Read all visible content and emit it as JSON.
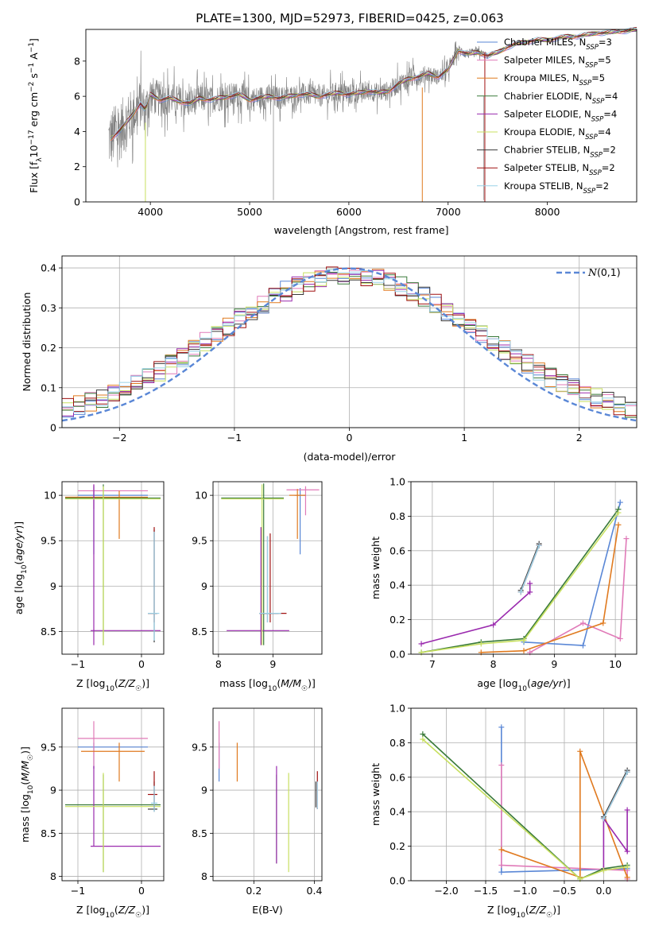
{
  "title": "PLATE=1300, MJD=52973, FIBERID=0425, z=0.063",
  "palette": {
    "chabrier_miles": "#5a87d6",
    "salpeter_miles": "#e07ab8",
    "kroupa_miles": "#e07a1f",
    "chabrier_elodie": "#3a7a3a",
    "salpeter_elodie": "#9a2aae",
    "kroupa_elodie": "#c8e060",
    "chabrier_stelib": "#3a3a3a",
    "salpeter_stelib": "#a01010",
    "kroupa_stelib": "#9ad2e8",
    "data": "#808080"
  },
  "chart_data": [
    {
      "id": "spectrum",
      "type": "line",
      "xlabel": "wavelength [Angstrom, rest frame]",
      "ylabel": "Flux [f_λ10^-17 erg cm^-2 s^-1 A^-1]",
      "xlim": [
        3350,
        8900
      ],
      "ylim": [
        0,
        9.8
      ],
      "xticks": [
        4000,
        5000,
        6000,
        7000,
        8000
      ],
      "yticks": [
        0,
        2,
        4,
        6,
        8
      ],
      "legend": "right",
      "legend_entries": [
        {
          "label": "Chabrier MILES, N",
          "sub": "SSP",
          "suffix": "=3",
          "color_key": "chabrier_miles"
        },
        {
          "label": "Salpeter MILES, N",
          "sub": "SSP",
          "suffix": "=5",
          "color_key": "salpeter_miles"
        },
        {
          "label": "Kroupa MILES, N",
          "sub": "SSP",
          "suffix": "=5",
          "color_key": "kroupa_miles"
        },
        {
          "label": "Chabrier ELODIE, N",
          "sub": "SSP",
          "suffix": "=4",
          "color_key": "chabrier_elodie"
        },
        {
          "label": "Salpeter ELODIE, N",
          "sub": "SSP",
          "suffix": "=4",
          "color_key": "salpeter_elodie"
        },
        {
          "label": "Kroupa ELODIE, N",
          "sub": "SSP",
          "suffix": "=4",
          "color_key": "kroupa_elodie"
        },
        {
          "label": "Chabrier STELIB, N",
          "sub": "SSP",
          "suffix": "=2",
          "color_key": "chabrier_stelib"
        },
        {
          "label": "Salpeter STELIB, N",
          "sub": "SSP",
          "suffix": "=2",
          "color_key": "salpeter_stelib"
        },
        {
          "label": "Kroupa STELIB, N",
          "sub": "SSP",
          "suffix": "=2",
          "color_key": "kroupa_stelib"
        }
      ],
      "model_continuum": {
        "x": [
          3600,
          3700,
          3800,
          3900,
          3950,
          4000,
          4100,
          4200,
          4300,
          4400,
          4500,
          4600,
          4700,
          4800,
          4900,
          5000,
          5100,
          5200,
          5300,
          5400,
          5500,
          5600,
          5700,
          5800,
          5900,
          6000,
          6100,
          6200,
          6300,
          6400,
          6500,
          6600,
          6700,
          6800,
          6900,
          7000,
          7100,
          7200,
          7300,
          7400,
          7500,
          7600,
          7700,
          7800,
          7900,
          8000,
          8100,
          8200,
          8300,
          8400,
          8500,
          8600,
          8700,
          8800,
          8900
        ],
        "y": [
          3.6,
          4.1,
          4.8,
          5.6,
          5.2,
          6.1,
          5.8,
          5.9,
          5.7,
          5.6,
          5.9,
          5.8,
          5.9,
          6.0,
          6.1,
          5.8,
          5.9,
          6.0,
          5.9,
          6.0,
          6.1,
          6.1,
          6.0,
          6.1,
          6.2,
          6.1,
          6.2,
          6.3,
          6.2,
          6.3,
          6.7,
          7.0,
          7.1,
          7.3,
          7.1,
          7.5,
          8.6,
          8.4,
          8.5,
          8.3,
          8.5,
          8.8,
          9.0,
          9.1,
          9.2,
          9.2,
          9.3,
          9.4,
          9.4,
          9.5,
          9.6,
          9.6,
          9.7,
          9.7,
          9.8
        ]
      },
      "data_envelope": {
        "x": [
          3600,
          3700,
          3800,
          3900,
          4000,
          4200,
          4400,
          4600,
          4800,
          5000,
          5200,
          5400,
          5600,
          5800,
          6000,
          6200,
          6400,
          6600,
          6800,
          7000,
          7200,
          7400
        ],
        "amp": [
          2.5,
          2.5,
          2.2,
          2.0,
          1.6,
          1.3,
          1.2,
          1.1,
          1.1,
          1.0,
          1.0,
          0.9,
          0.9,
          0.9,
          0.9,
          0.8,
          0.8,
          0.8,
          0.7,
          0.6,
          0.4,
          0.3
        ]
      }
    },
    {
      "id": "residuals",
      "type": "histogram",
      "xlabel": "(data-model)/error",
      "ylabel": "Normed distribution",
      "xlim": [
        -2.5,
        2.5
      ],
      "ylim": [
        0,
        0.43
      ],
      "xticks": [
        -2,
        -1,
        0,
        1,
        2
      ],
      "yticks": [
        0.0,
        0.1,
        0.2,
        0.3,
        0.4
      ],
      "grid": true,
      "legend": "top-right",
      "gaussian_label": "N(0,1)",
      "bin_width": 0.1
    },
    {
      "id": "age_vs_Z",
      "type": "errorbar",
      "xlabel": "Z [log10(Z/Z☉)]",
      "ylabel": "age [log10(age/yr)]",
      "xlim": [
        -1.25,
        0.35
      ],
      "ylim": [
        8.25,
        10.15
      ],
      "xticks": [
        -1,
        0
      ],
      "yticks": [
        8.5,
        9.0,
        9.5,
        10.0
      ],
      "grid": true
    },
    {
      "id": "age_vs_mass",
      "type": "errorbar",
      "xlabel": "mass [log10(M/M☉)]",
      "ylabel": "",
      "xlim": [
        7.9,
        9.9
      ],
      "ylim": [
        8.25,
        10.15
      ],
      "xticks": [
        8,
        9
      ],
      "yticks": [
        8.5,
        9.0,
        9.5,
        10.0
      ],
      "grid": true
    },
    {
      "id": "weight_vs_age",
      "type": "line",
      "xlabel": "age [log10(age/yr)]",
      "ylabel": "mass weight",
      "xlim": [
        6.65,
        10.35
      ],
      "ylim": [
        0,
        1.0
      ],
      "xticks": [
        7,
        8,
        9,
        10
      ],
      "yticks": [
        0.0,
        0.2,
        0.4,
        0.6,
        0.8,
        1.0
      ],
      "grid": true,
      "series": [
        {
          "color_key": "chabrier_miles",
          "x": [
            8.5,
            9.47,
            10.08
          ],
          "y": [
            0.07,
            0.05,
            0.88
          ]
        },
        {
          "color_key": "salpeter_miles",
          "x": [
            8.6,
            9.47,
            10.08,
            10.18
          ],
          "y": [
            0.01,
            0.18,
            0.09,
            0.67
          ]
        },
        {
          "color_key": "kroupa_miles",
          "x": [
            7.8,
            8.5,
            9.8,
            10.05
          ],
          "y": [
            0.01,
            0.02,
            0.18,
            0.75
          ]
        },
        {
          "color_key": "chabrier_elodie",
          "x": [
            6.82,
            7.8,
            8.5,
            10.05
          ],
          "y": [
            0.01,
            0.07,
            0.09,
            0.84
          ]
        },
        {
          "color_key": "salpeter_elodie",
          "x": [
            6.82,
            8.0,
            8.6,
            8.6
          ],
          "y": [
            0.06,
            0.17,
            0.36,
            0.41
          ]
        },
        {
          "color_key": "kroupa_elodie",
          "x": [
            6.82,
            7.8,
            8.5,
            10.05
          ],
          "y": [
            0.01,
            0.06,
            0.08,
            0.82
          ]
        },
        {
          "color_key": "chabrier_stelib",
          "x": [
            8.45,
            8.75
          ],
          "y": [
            0.37,
            0.64
          ]
        },
        {
          "color_key": "salpeter_stelib",
          "x": [
            8.45,
            8.75
          ],
          "y": [
            0.36,
            0.63
          ]
        },
        {
          "color_key": "kroupa_stelib",
          "x": [
            8.45,
            8.75
          ],
          "y": [
            0.36,
            0.63
          ]
        }
      ]
    },
    {
      "id": "mass_vs_Z",
      "type": "errorbar",
      "xlabel": "Z [log10(Z/Z☉)]",
      "ylabel": "mass [log10(M/M☉)]",
      "xlim": [
        -1.25,
        0.35
      ],
      "ylim": [
        7.95,
        9.95
      ],
      "xticks": [
        -1,
        0
      ],
      "yticks": [
        8.0,
        8.5,
        9.0,
        9.5
      ],
      "grid": true
    },
    {
      "id": "mass_vs_EBV",
      "type": "errorbar",
      "xlabel": "E(B-V)",
      "ylabel": "",
      "xlim": [
        0.065,
        0.425
      ],
      "ylim": [
        7.95,
        9.95
      ],
      "xticks": [
        0.2,
        0.4
      ],
      "yticks": [
        8.0,
        8.5,
        9.0,
        9.5
      ],
      "grid": true
    },
    {
      "id": "weight_vs_Z",
      "type": "line",
      "xlabel": "Z [log10(Z/Z☉)]",
      "ylabel": "mass weight",
      "xlim": [
        -2.45,
        0.42
      ],
      "ylim": [
        0,
        1.0
      ],
      "xticks": [
        -2.0,
        -1.5,
        -1.0,
        -0.5,
        0.0
      ],
      "yticks": [
        0.0,
        0.2,
        0.4,
        0.6,
        0.8,
        1.0
      ],
      "grid": true,
      "series": [
        {
          "color_key": "chabrier_miles",
          "x": [
            -1.3,
            -1.3,
            0.3
          ],
          "y": [
            0.89,
            0.05,
            0.07
          ]
        },
        {
          "color_key": "salpeter_miles",
          "x": [
            -1.3,
            -1.3,
            0.3,
            0.3
          ],
          "y": [
            0.67,
            0.09,
            0.06,
            0.01
          ]
        },
        {
          "color_key": "kroupa_miles",
          "x": [
            -1.3,
            -0.3,
            -0.3,
            0.3
          ],
          "y": [
            0.18,
            0.02,
            0.75,
            0.02
          ]
        },
        {
          "color_key": "chabrier_elodie",
          "x": [
            -2.3,
            -0.3,
            0.0,
            0.3
          ],
          "y": [
            0.85,
            0.01,
            0.07,
            0.09
          ]
        },
        {
          "color_key": "salpeter_elodie",
          "x": [
            0.0,
            0.0,
            0.3,
            0.3
          ],
          "y": [
            0.06,
            0.36,
            0.17,
            0.41
          ]
        },
        {
          "color_key": "kroupa_elodie",
          "x": [
            -2.3,
            -0.3,
            0.0,
            0.3
          ],
          "y": [
            0.82,
            0.01,
            0.06,
            0.08
          ]
        },
        {
          "color_key": "chabrier_stelib",
          "x": [
            0.0,
            0.3
          ],
          "y": [
            0.37,
            0.64
          ]
        },
        {
          "color_key": "salpeter_stelib",
          "x": [
            0.0,
            0.3
          ],
          "y": [
            0.36,
            0.63
          ]
        },
        {
          "color_key": "kroupa_stelib",
          "x": [
            0.0,
            0.3
          ],
          "y": [
            0.36,
            0.63
          ]
        }
      ]
    }
  ],
  "errorbars": {
    "age_vs_Z": [
      {
        "c": "chabrier_miles",
        "x": -0.75,
        "y": 10.0,
        "xl": -1.0,
        "xh": 0.1,
        "yl": 9.35,
        "yh": 10.1
      },
      {
        "c": "salpeter_miles",
        "x": -0.75,
        "y": 10.05,
        "xl": -1.0,
        "xh": 0.1,
        "yl": 9.85,
        "yh": 10.12
      },
      {
        "c": "kroupa_miles",
        "x": -0.35,
        "y": 9.98,
        "xl": -1.2,
        "xh": 0.1,
        "yl": 9.52,
        "yh": 10.05
      },
      {
        "c": "chabrier_elodie",
        "x": -0.6,
        "y": 9.97,
        "xl": -1.2,
        "xh": 0.3,
        "yl": 8.35,
        "yh": 10.12
      },
      {
        "c": "salpeter_elodie",
        "x": -0.75,
        "y": 8.51,
        "xl": -0.8,
        "xh": 0.3,
        "yl": 8.35,
        "yh": 10.12
      },
      {
        "c": "kroupa_elodie",
        "x": -0.6,
        "y": 9.96,
        "xl": -1.2,
        "xh": 0.3,
        "yl": 8.35,
        "yh": 10.1
      },
      {
        "c": "chabrier_stelib",
        "x": 0.2,
        "y": 8.7,
        "xl": 0.1,
        "xh": 0.25,
        "yl": 8.38,
        "yh": 9.62
      },
      {
        "c": "salpeter_stelib",
        "x": 0.2,
        "y": 8.7,
        "xl": 0.1,
        "xh": 0.25,
        "yl": 8.6,
        "yh": 9.65
      },
      {
        "c": "kroupa_stelib",
        "x": 0.2,
        "y": 8.7,
        "xl": 0.1,
        "xh": 0.28,
        "yl": 8.4,
        "yh": 9.6
      }
    ],
    "age_vs_mass": [
      {
        "c": "chabrier_miles",
        "x": 9.5,
        "y": 10.0,
        "xl": 9.4,
        "xh": 9.6,
        "yl": 9.35,
        "yh": 10.08
      },
      {
        "c": "salpeter_miles",
        "x": 9.6,
        "y": 10.06,
        "xl": 9.25,
        "xh": 9.85,
        "yl": 9.78,
        "yh": 10.1
      },
      {
        "c": "kroupa_miles",
        "x": 9.45,
        "y": 10.0,
        "xl": 9.3,
        "xh": 9.6,
        "yl": 9.52,
        "yh": 10.07
      },
      {
        "c": "chabrier_elodie",
        "x": 8.83,
        "y": 9.97,
        "xl": 8.05,
        "xh": 9.2,
        "yl": 8.35,
        "yh": 10.13
      },
      {
        "c": "salpeter_elodie",
        "x": 8.78,
        "y": 8.51,
        "xl": 8.15,
        "xh": 9.3,
        "yl": 8.35,
        "yh": 9.65
      },
      {
        "c": "kroupa_elodie",
        "x": 8.8,
        "y": 9.96,
        "xl": 8.05,
        "xh": 9.2,
        "yl": 8.35,
        "yh": 10.12
      },
      {
        "c": "chabrier_stelib",
        "x": 8.9,
        "y": 8.7,
        "xl": 8.75,
        "xh": 9.1,
        "yl": 8.6,
        "yh": 9.55
      },
      {
        "c": "salpeter_stelib",
        "x": 8.95,
        "y": 8.7,
        "xl": 8.8,
        "xh": 9.25,
        "yl": 8.6,
        "yh": 9.58
      },
      {
        "c": "kroupa_stelib",
        "x": 8.9,
        "y": 8.7,
        "xl": 8.75,
        "xh": 9.15,
        "yl": 8.6,
        "yh": 9.55
      }
    ],
    "mass_vs_Z": [
      {
        "c": "chabrier_miles",
        "x": -0.75,
        "y": 9.5,
        "xl": -1.0,
        "xh": 0.1,
        "yl": 9.25,
        "yh": 9.55
      },
      {
        "c": "salpeter_miles",
        "x": -0.75,
        "y": 9.6,
        "xl": -1.0,
        "xh": 0.1,
        "yl": 9.25,
        "yh": 9.8
      },
      {
        "c": "kroupa_miles",
        "x": -0.35,
        "y": 9.45,
        "xl": -0.95,
        "xh": 0.05,
        "yl": 9.1,
        "yh": 9.55
      },
      {
        "c": "chabrier_elodie",
        "x": -0.6,
        "y": 8.83,
        "xl": -1.2,
        "xh": 0.3,
        "yl": 8.05,
        "yh": 9.18
      },
      {
        "c": "salpeter_elodie",
        "x": -0.75,
        "y": 8.35,
        "xl": -0.8,
        "xh": 0.3,
        "yl": 8.35,
        "yh": 9.28
      },
      {
        "c": "kroupa_elodie",
        "x": -0.6,
        "y": 8.81,
        "xl": -1.2,
        "xh": 0.3,
        "yl": 8.05,
        "yh": 9.2
      },
      {
        "c": "chabrier_stelib",
        "x": 0.2,
        "y": 8.78,
        "xl": 0.1,
        "xh": 0.25,
        "yl": 8.75,
        "yh": 9.1
      },
      {
        "c": "salpeter_stelib",
        "x": 0.2,
        "y": 8.95,
        "xl": 0.1,
        "xh": 0.25,
        "yl": 8.8,
        "yh": 9.22
      },
      {
        "c": "kroupa_stelib",
        "x": 0.2,
        "y": 8.85,
        "xl": 0.15,
        "xh": 0.25,
        "yl": 8.75,
        "yh": 9.05
      }
    ],
    "mass_vs_EBV": [
      {
        "c": "chabrier_miles",
        "x": 0.085,
        "y": 9.5,
        "xl": 0.085,
        "xh": 0.085,
        "yl": 9.1,
        "yh": 9.55
      },
      {
        "c": "salpeter_miles",
        "x": 0.085,
        "y": 9.6,
        "xl": 0.085,
        "xh": 0.085,
        "yl": 9.25,
        "yh": 9.8
      },
      {
        "c": "kroupa_miles",
        "x": 0.145,
        "y": 9.45,
        "xl": 0.145,
        "xh": 0.145,
        "yl": 9.1,
        "yh": 9.55
      },
      {
        "c": "chabrier_elodie",
        "x": 0.275,
        "y": 8.83,
        "xl": 0.275,
        "xh": 0.275,
        "yl": 8.15,
        "yh": 9.18
      },
      {
        "c": "salpeter_elodie",
        "x": 0.275,
        "y": 8.7,
        "xl": 0.275,
        "xh": 0.275,
        "yl": 8.15,
        "yh": 9.28
      },
      {
        "c": "kroupa_elodie",
        "x": 0.315,
        "y": 8.8,
        "xl": 0.315,
        "xh": 0.315,
        "yl": 8.05,
        "yh": 9.2
      },
      {
        "c": "chabrier_stelib",
        "x": 0.405,
        "y": 8.85,
        "xl": 0.405,
        "xh": 0.405,
        "yl": 8.8,
        "yh": 9.1
      },
      {
        "c": "salpeter_stelib",
        "x": 0.41,
        "y": 9.0,
        "xl": 0.41,
        "xh": 0.41,
        "yl": 8.78,
        "yh": 9.22
      },
      {
        "c": "kroupa_stelib",
        "x": 0.41,
        "y": 8.9,
        "xl": 0.41,
        "xh": 0.41,
        "yl": 8.78,
        "yh": 9.1
      }
    ]
  }
}
